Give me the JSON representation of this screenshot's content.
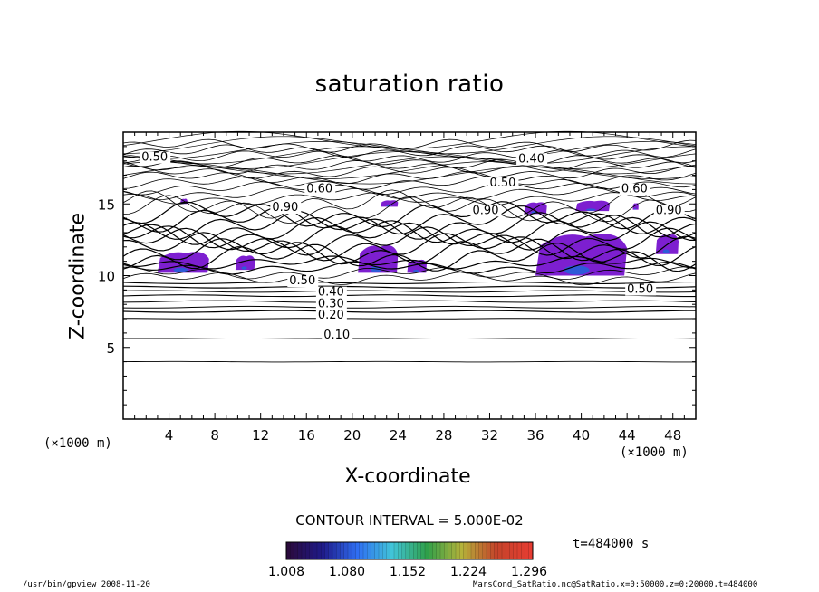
{
  "chart_data": {
    "type": "contour",
    "title": "saturation ratio",
    "xlabel": "X-coordinate",
    "ylabel": "Z-coordinate",
    "x_unit": "(×1000 m)",
    "z_unit": "(×1000 m)",
    "xlim": [
      0,
      50
    ],
    "ylim": [
      0,
      20
    ],
    "x_ticks": [
      4,
      8,
      12,
      16,
      20,
      24,
      28,
      32,
      36,
      40,
      44,
      48
    ],
    "y_ticks": [
      5,
      10,
      15
    ],
    "contour_interval_label": "CONTOUR INTERVAL = 5.000E-02",
    "time_label": "t=484000 s",
    "contour_labels": [
      {
        "text": "0.10",
        "x": 17.5,
        "z": 5.6
      },
      {
        "text": "0.20",
        "x": 17.0,
        "z": 7.0
      },
      {
        "text": "0.30",
        "x": 17.0,
        "z": 7.8
      },
      {
        "text": "0.40",
        "x": 17.0,
        "z": 8.6
      },
      {
        "text": "0.50",
        "x": 14.5,
        "z": 9.4
      },
      {
        "text": "0.40",
        "x": 34.5,
        "z": 17.9
      },
      {
        "text": "0.50",
        "x": 32.0,
        "z": 16.2
      },
      {
        "text": "0.50",
        "x": 1.6,
        "z": 18.0
      },
      {
        "text": "0.60",
        "x": 43.5,
        "z": 15.8
      },
      {
        "text": "0.60",
        "x": 16.0,
        "z": 15.8
      },
      {
        "text": "0.90",
        "x": 13.0,
        "z": 14.5
      },
      {
        "text": "0.90",
        "x": 46.5,
        "z": 14.3
      },
      {
        "text": "0.90",
        "x": 30.5,
        "z": 14.3
      },
      {
        "text": "0.50",
        "x": 44.0,
        "z": 8.8
      }
    ],
    "supersaturated_regions": [
      {
        "x": [
          3.0,
          7.5
        ],
        "z": [
          10.2,
          11.8
        ]
      },
      {
        "x": [
          9.8,
          11.5
        ],
        "z": [
          10.4,
          11.5
        ]
      },
      {
        "x": [
          20.5,
          24.0
        ],
        "z": [
          10.2,
          12.3
        ]
      },
      {
        "x": [
          24.8,
          26.5
        ],
        "z": [
          10.2,
          11.2
        ]
      },
      {
        "x": [
          36.0,
          44.0
        ],
        "z": [
          10.0,
          13.2
        ]
      },
      {
        "x": [
          35.0,
          37.0
        ],
        "z": [
          14.3,
          15.2
        ]
      },
      {
        "x": [
          39.5,
          42.5
        ],
        "z": [
          14.5,
          15.3
        ]
      },
      {
        "x": [
          46.5,
          48.5
        ],
        "z": [
          11.5,
          13.0
        ]
      },
      {
        "x": [
          22.5,
          24.0
        ],
        "z": [
          14.8,
          15.3
        ]
      },
      {
        "x": [
          5.0,
          5.6
        ],
        "z": [
          15.0,
          15.4
        ]
      },
      {
        "x": [
          44.5,
          45.0
        ],
        "z": [
          14.6,
          15.1
        ]
      }
    ],
    "colorbar": {
      "ticks": [
        "1.008",
        "1.080",
        "1.152",
        "1.224",
        "1.296"
      ],
      "colors": [
        "#2a0a3c",
        "#1f1b8a",
        "#2f6ef2",
        "#41c4d8",
        "#2fa04a",
        "#b4b23a",
        "#c4442a",
        "#e63c32"
      ]
    },
    "grid": false
  },
  "footer": {
    "left": "/usr/bin/gpview  2008-11-20",
    "right": "MarsCond_SatRatio.nc@SatRatio,x=0:50000,z=0:20000,t=484000"
  }
}
